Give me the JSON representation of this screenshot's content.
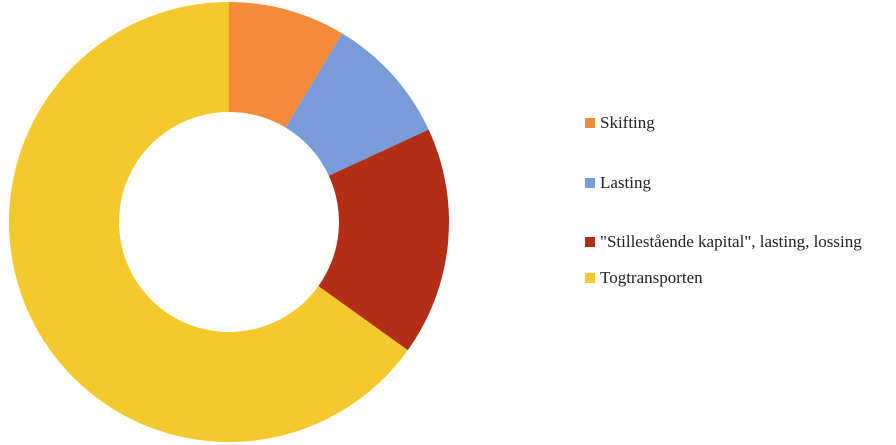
{
  "chart_data": {
    "type": "donut",
    "categories": [
      "Skifting",
      "Lasting",
      "\"Stillestående kapital\", lasting, lossing",
      "Togtransporten"
    ],
    "values": [
      8.6,
      9.5,
      16.8,
      65.1
    ],
    "colors": [
      "#f58a3a",
      "#789cd9",
      "#b22e17",
      "#f4c92e"
    ],
    "legend": "right"
  }
}
